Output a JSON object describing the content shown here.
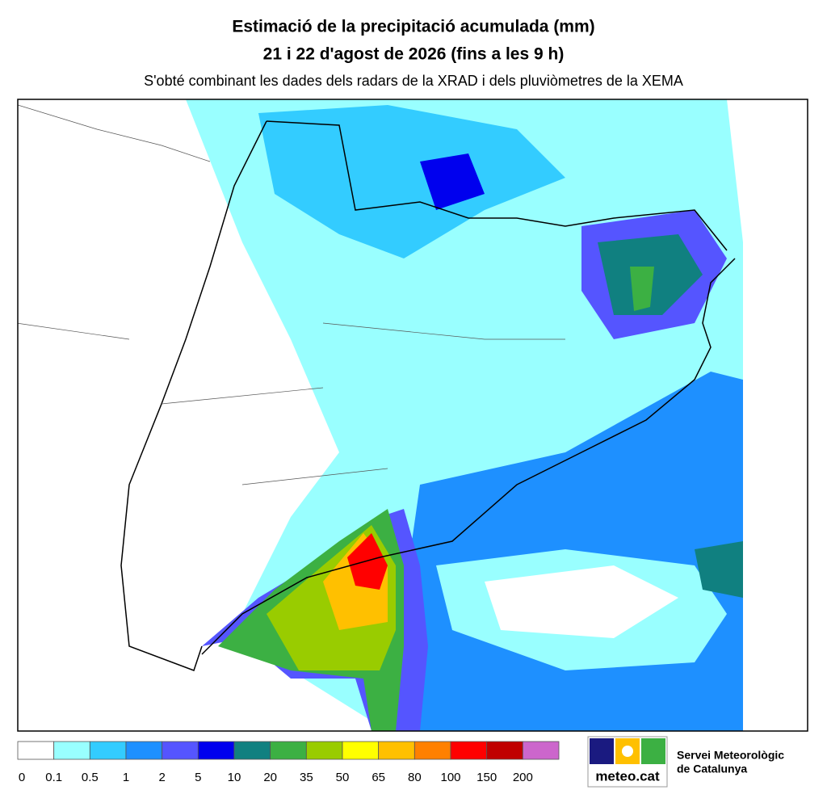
{
  "header": {
    "title": "Estimació de la precipitació acumulada (mm)",
    "date": "21 i 22 d'agost de 2026 (fins a les 9 h)",
    "subtitle": "S'obté combinant les dades dels radars de la XRAD i dels pluviòmetres de la XEMA"
  },
  "legend": {
    "labels": [
      0,
      0.1,
      0.5,
      1,
      2,
      5,
      10,
      20,
      35,
      50,
      65,
      80,
      100,
      150,
      200
    ],
    "colors": [
      "#ffffff",
      "#99ffff",
      "#33ccff",
      "#1e90ff",
      "#5555ff",
      "#0000ee",
      "#108080",
      "#3cb043",
      "#99cc00",
      "#ffff00",
      "#ffc000",
      "#ff8000",
      "#ff0000",
      "#c00000",
      "#cc66cc"
    ]
  },
  "logo": {
    "brand": "meteo.cat",
    "name_line1": "Servei Meteorològic",
    "name_line2": "de Catalunya"
  }
}
